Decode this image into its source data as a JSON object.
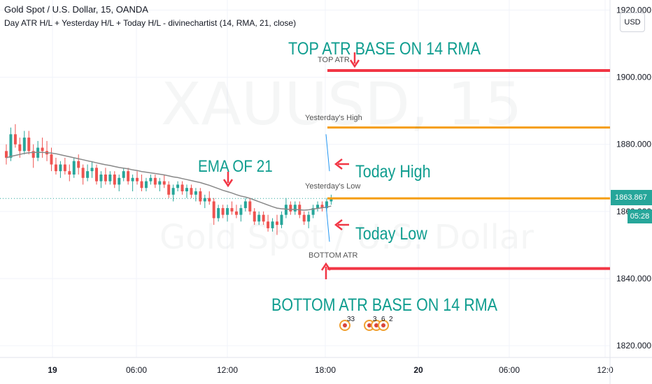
{
  "header": {
    "symbol": "Gold Spot / U.S. Dollar, 15, OANDA",
    "indicator": "Day ATR H/L + Yesterday H/L + Today H/L - divinechartist (14, RMA, 21, close)"
  },
  "watermark": {
    "ticker": "XAUUSD, 15",
    "name": "Gold Spot / U.S. Dollar"
  },
  "currency_button": "USD",
  "annotations": {
    "top_atr_note": "TOP ATR BASE ON 14 RMA",
    "ema_note": "EMA OF 21",
    "today_high_note": "Today High",
    "today_low_note": "Today Low",
    "bottom_atr_note": "BOTTOM  ATR BASE ON 14 RMA"
  },
  "level_labels": {
    "top_atr": "TOP ATR",
    "yesterday_high": "Yesterday's High",
    "yesterday_low": "Yesterday's Low",
    "bottom_atr": "BOTTOM ATR"
  },
  "price_tag": "1863.867",
  "countdown": "05:28",
  "events": [
    {
      "count": "33"
    },
    {
      "count": "3"
    },
    {
      "count": "6"
    },
    {
      "count": "2"
    }
  ],
  "colors": {
    "up": "#26a69a",
    "down": "#ef5350",
    "atr_line": "#f23645",
    "yesterday_line": "#f59d10",
    "ema_line": "#888888",
    "annotation": "#0f9d8f"
  },
  "chart_data": {
    "type": "candlestick",
    "title": "",
    "y_ticks": [
      1820,
      1840,
      1860,
      1880,
      1900,
      1920
    ],
    "y_tick_labels": [
      "1820.000",
      "1840.000",
      "1860.000",
      "1880.000",
      "1900.000",
      "1920.000"
    ],
    "x_ticks": [
      {
        "label": "19",
        "bold": true
      },
      {
        "label": "06:00",
        "bold": false
      },
      {
        "label": "12:00",
        "bold": false
      },
      {
        "label": "18:00",
        "bold": false
      },
      {
        "label": "20",
        "bold": true
      },
      {
        "label": "06:00",
        "bold": false
      },
      {
        "label": "12:0",
        "bold": false
      }
    ],
    "ylim": [
      1816.5,
      1923
    ],
    "levels": {
      "top_atr": 1902,
      "yesterday_high": 1885,
      "yesterday_low": 1863.9,
      "bottom_atr": 1843,
      "current_price": 1863.867
    },
    "candles": [
      [
        1878.0,
        1880.0,
        1874.0,
        1876.0
      ],
      [
        1876.0,
        1885.0,
        1875.0,
        1883.0
      ],
      [
        1883.0,
        1886.0,
        1879.0,
        1880.0
      ],
      [
        1880.0,
        1882.0,
        1876.0,
        1878.0
      ],
      [
        1878.0,
        1884.0,
        1877.0,
        1882.0
      ],
      [
        1882.0,
        1884.0,
        1877.0,
        1878.0
      ],
      [
        1878.0,
        1880.0,
        1873.0,
        1876.0
      ],
      [
        1876.0,
        1881.0,
        1875.0,
        1879.0
      ],
      [
        1879.0,
        1882.0,
        1876.0,
        1878.0
      ],
      [
        1878.0,
        1881.0,
        1875.0,
        1877.0
      ],
      [
        1877.0,
        1879.0,
        1872.0,
        1874.0
      ],
      [
        1874.0,
        1876.0,
        1871.0,
        1872.0
      ],
      [
        1872.0,
        1875.0,
        1870.0,
        1874.0
      ],
      [
        1874.0,
        1876.0,
        1871.0,
        1872.0
      ],
      [
        1872.0,
        1874.0,
        1869.0,
        1871.0
      ],
      [
        1871.0,
        1876.0,
        1870.0,
        1875.0
      ],
      [
        1875.0,
        1877.0,
        1871.0,
        1873.0
      ],
      [
        1873.0,
        1874.0,
        1868.0,
        1870.0
      ],
      [
        1870.0,
        1874.0,
        1869.0,
        1872.0
      ],
      [
        1872.0,
        1875.0,
        1870.0,
        1873.0
      ],
      [
        1873.0,
        1874.0,
        1868.0,
        1869.0
      ],
      [
        1869.0,
        1872.0,
        1867.0,
        1871.0
      ],
      [
        1871.0,
        1873.0,
        1868.0,
        1869.0
      ],
      [
        1869.0,
        1872.0,
        1868.0,
        1871.0
      ],
      [
        1871.0,
        1872.0,
        1867.0,
        1868.0
      ],
      [
        1868.0,
        1871.0,
        1866.0,
        1870.0
      ],
      [
        1870.0,
        1873.0,
        1869.0,
        1872.0
      ],
      [
        1872.0,
        1873.0,
        1868.0,
        1869.0
      ],
      [
        1869.0,
        1871.0,
        1866.0,
        1870.0
      ],
      [
        1870.0,
        1872.0,
        1868.0,
        1869.0
      ],
      [
        1869.0,
        1871.0,
        1866.0,
        1867.0
      ],
      [
        1867.0,
        1870.0,
        1866.0,
        1869.0
      ],
      [
        1869.0,
        1871.0,
        1868.0,
        1870.0
      ],
      [
        1870.0,
        1871.0,
        1867.0,
        1868.0
      ],
      [
        1868.0,
        1870.0,
        1866.0,
        1869.0
      ],
      [
        1869.0,
        1871.0,
        1867.0,
        1868.0
      ],
      [
        1868.0,
        1869.0,
        1864.0,
        1865.0
      ],
      [
        1865.0,
        1868.0,
        1863.0,
        1867.0
      ],
      [
        1867.0,
        1869.0,
        1866.0,
        1868.0
      ],
      [
        1868.0,
        1869.0,
        1865.0,
        1866.0
      ],
      [
        1866.0,
        1868.0,
        1864.0,
        1867.0
      ],
      [
        1867.0,
        1868.0,
        1864.0,
        1865.0
      ],
      [
        1865.0,
        1867.0,
        1863.0,
        1866.0
      ],
      [
        1866.0,
        1867.0,
        1862.0,
        1863.0
      ],
      [
        1863.0,
        1865.0,
        1861.0,
        1864.0
      ],
      [
        1864.0,
        1866.0,
        1862.0,
        1863.0
      ],
      [
        1863.0,
        1864.0,
        1856.0,
        1858.0
      ],
      [
        1858.0,
        1862.0,
        1857.0,
        1861.0
      ],
      [
        1861.0,
        1862.0,
        1858.0,
        1859.0
      ],
      [
        1859.0,
        1862.0,
        1857.0,
        1861.0
      ],
      [
        1861.0,
        1863.0,
        1859.0,
        1860.0
      ],
      [
        1860.0,
        1862.0,
        1858.0,
        1859.0
      ],
      [
        1859.0,
        1862.0,
        1857.0,
        1861.0
      ],
      [
        1861.0,
        1864.0,
        1860.0,
        1863.0
      ],
      [
        1863.0,
        1864.0,
        1859.0,
        1860.0
      ],
      [
        1860.0,
        1861.0,
        1856.0,
        1857.0
      ],
      [
        1857.0,
        1860.0,
        1856.0,
        1859.0
      ],
      [
        1859.0,
        1860.0,
        1856.0,
        1857.0
      ],
      [
        1857.0,
        1859.0,
        1854.0,
        1855.0
      ],
      [
        1855.0,
        1858.0,
        1854.0,
        1857.0
      ],
      [
        1857.0,
        1859.0,
        1853.0,
        1856.0
      ],
      [
        1856.0,
        1860.0,
        1855.0,
        1859.0
      ],
      [
        1859.0,
        1864.0,
        1858.0,
        1862.0
      ],
      [
        1862.0,
        1863.0,
        1859.0,
        1860.0
      ],
      [
        1860.0,
        1863.0,
        1859.0,
        1862.0
      ],
      [
        1862.0,
        1863.0,
        1858.0,
        1859.0
      ],
      [
        1859.0,
        1860.0,
        1856.0,
        1857.0
      ],
      [
        1857.0,
        1860.0,
        1855.0,
        1859.0
      ],
      [
        1859.0,
        1862.0,
        1858.0,
        1861.0
      ],
      [
        1861.0,
        1863.0,
        1860.0,
        1862.0
      ],
      [
        1862.0,
        1863.0,
        1860.0,
        1861.0
      ],
      [
        1861.0,
        1864.0,
        1860.0,
        1863.0
      ],
      [
        1863.0,
        1865.0,
        1862.0,
        1863.9
      ]
    ],
    "ema": [
      1876.0,
      1876.4,
      1876.7,
      1877.0,
      1877.3,
      1877.5,
      1877.6,
      1877.6,
      1877.6,
      1877.5,
      1877.4,
      1877.2,
      1876.9,
      1876.6,
      1876.3,
      1876.0,
      1875.7,
      1875.4,
      1875.1,
      1874.8,
      1874.5,
      1874.2,
      1873.9,
      1873.7,
      1873.4,
      1873.1,
      1872.9,
      1872.7,
      1872.4,
      1872.2,
      1871.9,
      1871.7,
      1871.5,
      1871.3,
      1871.1,
      1870.9,
      1870.6,
      1870.3,
      1870.1,
      1869.8,
      1869.5,
      1869.2,
      1868.9,
      1868.6,
      1868.2,
      1867.8,
      1867.3,
      1866.8,
      1866.3,
      1865.9,
      1865.5,
      1865.0,
      1864.6,
      1864.3,
      1863.9,
      1863.4,
      1862.9,
      1862.4,
      1861.9,
      1861.4,
      1861.0,
      1860.8,
      1860.7,
      1860.6,
      1860.6,
      1860.5,
      1860.4,
      1860.5,
      1860.7,
      1860.9,
      1861.1,
      1861.3,
      1861.6
    ]
  }
}
